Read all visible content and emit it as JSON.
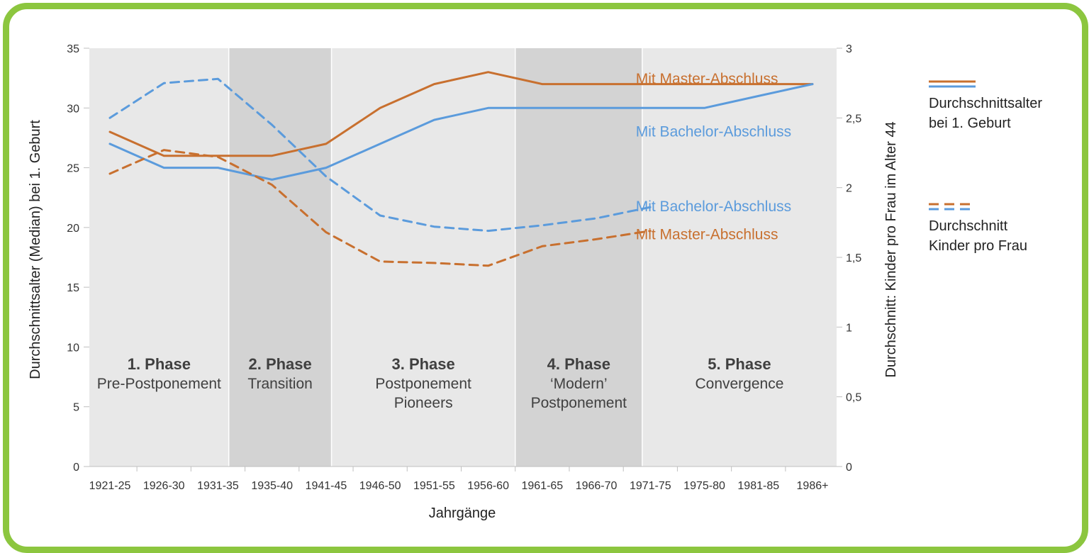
{
  "chart_data": {
    "type": "line",
    "categories": [
      "1921-25",
      "1926-30",
      "1931-35",
      "1935-40",
      "1941-45",
      "1946-50",
      "1951-55",
      "1956-60",
      "1961-65",
      "1966-70",
      "1971-75",
      "1975-80",
      "1981-85",
      "1986+"
    ],
    "xlabel": "Jahrgänge",
    "ylabel": "Durchschnittsalter (Median) bei 1. Geburt",
    "ylabel_right": "Durchschnitt: Kinder pro Frau im Alter 44",
    "ylim": [
      0,
      35
    ],
    "ylim_right": [
      0,
      3
    ],
    "yticks": [
      0,
      5,
      10,
      15,
      20,
      25,
      30,
      35
    ],
    "yticks_right": [
      "0",
      "0,5",
      "1",
      "1,5",
      "2",
      "2,5",
      "3"
    ],
    "phases": [
      {
        "title": "1. Phase",
        "subtitle": [
          "Pre-Postponement"
        ],
        "from": 0,
        "to": 2.2,
        "shade": "light"
      },
      {
        "title": "2. Phase",
        "subtitle": [
          "Transition"
        ],
        "from": 2.2,
        "to": 4.1,
        "shade": "dark"
      },
      {
        "title": "3. Phase",
        "subtitle": [
          "Postponement",
          "Pioneers"
        ],
        "from": 4.1,
        "to": 7.5,
        "shade": "light"
      },
      {
        "title": "4. Phase",
        "subtitle": [
          "‘Modern’",
          "Postponement"
        ],
        "from": 7.5,
        "to": 9.85,
        "shade": "dark"
      },
      {
        "title": "5. Phase",
        "subtitle": [
          "Convergence"
        ],
        "from": 9.85,
        "to": 13,
        "shade": "light"
      }
    ],
    "series": [
      {
        "name": "Mit Master-Abschluss",
        "axis": "left",
        "style": "solid",
        "color": "#c8702f",
        "values": [
          28,
          26,
          26,
          26,
          27,
          30,
          32,
          33,
          32,
          32,
          32,
          32,
          32,
          32
        ]
      },
      {
        "name": "Mit Bachelor-Abschluss",
        "axis": "left",
        "style": "solid",
        "color": "#5b9bdc",
        "values": [
          27,
          25,
          25,
          24,
          25,
          27,
          29,
          30,
          30,
          30,
          30,
          30,
          31,
          32
        ]
      },
      {
        "name": "Mit Bachelor-Abschluss",
        "axis": "right",
        "style": "dashed",
        "color": "#5b9bdc",
        "values": [
          2.5,
          2.75,
          2.78,
          2.45,
          2.08,
          1.8,
          1.72,
          1.69,
          1.73,
          1.78,
          1.86,
          null,
          null,
          null
        ]
      },
      {
        "name": "Mit Master-Abschluss",
        "axis": "right",
        "style": "dashed",
        "color": "#c8702f",
        "values": [
          2.1,
          2.27,
          2.22,
          2.02,
          1.68,
          1.47,
          1.46,
          1.44,
          1.58,
          1.63,
          1.69,
          null,
          null,
          null
        ]
      }
    ],
    "series_labels": [
      {
        "text": "Mit Master-Abschluss",
        "color": "#c8702f",
        "x": 10.15,
        "y": 32.5,
        "axis": "left"
      },
      {
        "text": "Mit Bachelor-Abschluss",
        "color": "#5b9bdc",
        "x": 10.15,
        "y": 28.1,
        "axis": "left"
      },
      {
        "text": "Mit Bachelor-Abschluss",
        "color": "#5b9bdc",
        "x": 10.15,
        "y": 1.87,
        "axis": "right"
      },
      {
        "text": "Mit Master-Abschluss",
        "color": "#c8702f",
        "x": 10.15,
        "y": 1.67,
        "axis": "right"
      }
    ],
    "legend": [
      {
        "style": "solid",
        "lines": [
          "Durchschnittsalter",
          "bei 1. Geburt"
        ]
      },
      {
        "style": "dashed",
        "lines": [
          "Durchschnitt",
          "Kinder pro Frau"
        ]
      }
    ],
    "legend_position": "right"
  },
  "colors": {
    "frame": "#8cc63f",
    "shade_light": "#e8e8e8",
    "shade_dark": "#d3d3d3",
    "master": "#c8702f",
    "bachelor": "#5b9bdc"
  }
}
